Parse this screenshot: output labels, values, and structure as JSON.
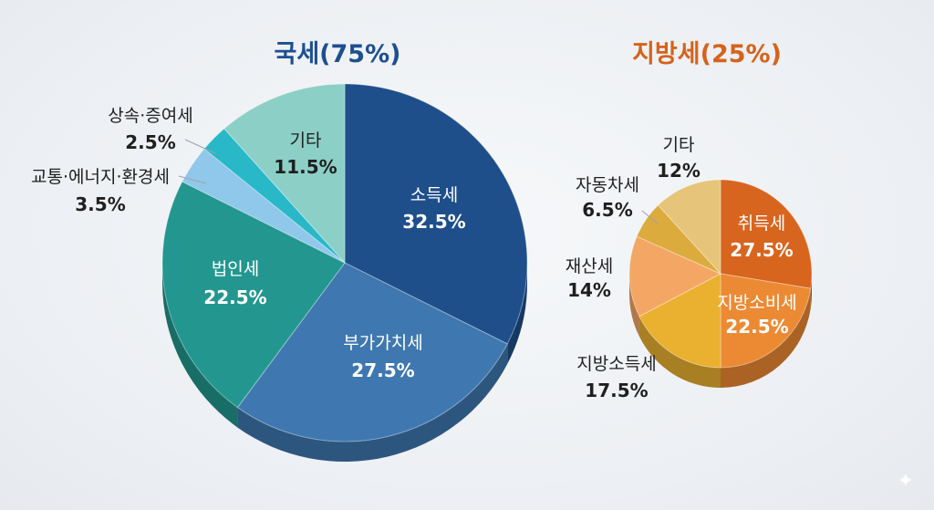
{
  "chart_data": [
    {
      "type": "pie",
      "title": "국세(75%)",
      "slices": [
        {
          "name": "소득세",
          "value": 32.5,
          "color": "#1f4f8b"
        },
        {
          "name": "부가가치세",
          "value": 27.5,
          "color": "#3f78b0"
        },
        {
          "name": "법인세",
          "value": 22.5,
          "color": "#23978f"
        },
        {
          "name": "교통·에너지·환경세",
          "value": 3.5,
          "color": "#8fc8ea"
        },
        {
          "name": "상속·증여세",
          "value": 2.5,
          "color": "#28b8c8"
        },
        {
          "name": "기타",
          "value": 11.5,
          "color": "#8ccfc6"
        }
      ],
      "value_labels": [
        "32.5%",
        "27.5%",
        "22.5%",
        "3.5%",
        "2.5%",
        "11.5%"
      ],
      "title_color": "#1e4f8f"
    },
    {
      "type": "pie",
      "title": "지방세(25%)",
      "slices": [
        {
          "name": "취득세",
          "value": 27.5,
          "color": "#d8651e"
        },
        {
          "name": "지방소비세",
          "value": 22.5,
          "color": "#ec8a34"
        },
        {
          "name": "지방소득세",
          "value": 17.5,
          "color": "#eab02f"
        },
        {
          "name": "재산세",
          "value": 14,
          "color": "#f4a764"
        },
        {
          "name": "자동차세",
          "value": 6.5,
          "color": "#dcab3d"
        },
        {
          "name": "기타",
          "value": 12,
          "color": "#e6c47a"
        }
      ],
      "value_labels": [
        "27.5%",
        "22.5%",
        "17.5%",
        "14%",
        "6.5%",
        "12%"
      ],
      "title_color": "#d5631b"
    }
  ]
}
